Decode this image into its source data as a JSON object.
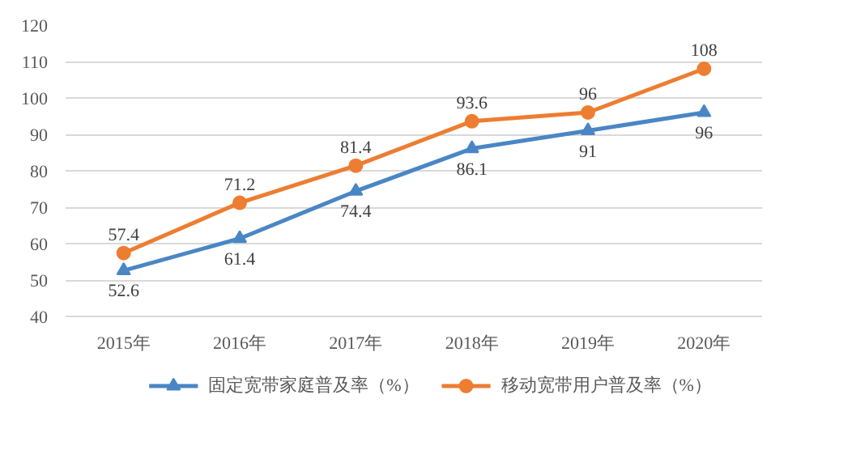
{
  "chart_data": {
    "type": "line",
    "categories": [
      "2015年",
      "2016年",
      "2017年",
      "2018年",
      "2019年",
      "2020年"
    ],
    "series": [
      {
        "name": "固定宽带家庭普及率（%）",
        "color": "#4a86c5",
        "marker": "triangle",
        "values": [
          52.6,
          61.4,
          74.4,
          86.1,
          91,
          96
        ]
      },
      {
        "name": "移动宽带用户普及率（%）",
        "color": "#ed7d31",
        "marker": "circle",
        "values": [
          57.4,
          71.2,
          81.4,
          93.6,
          96,
          108
        ]
      }
    ],
    "ylim": [
      40,
      120
    ],
    "yticks": [
      40,
      50,
      60,
      70,
      80,
      90,
      100,
      110,
      120
    ],
    "grid": "y",
    "legend": "bottom",
    "data_labels": true,
    "line_style": "solid"
  }
}
